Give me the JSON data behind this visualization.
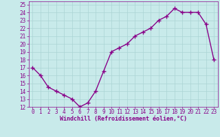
{
  "x": [
    0,
    1,
    2,
    3,
    4,
    5,
    6,
    7,
    8,
    9,
    10,
    11,
    12,
    13,
    14,
    15,
    16,
    17,
    18,
    19,
    20,
    21,
    22,
    23
  ],
  "y": [
    17,
    16,
    14.5,
    14,
    13.5,
    13,
    12,
    12.5,
    14,
    16.5,
    19,
    19.5,
    20,
    21,
    21.5,
    22,
    23,
    23.5,
    24.5,
    24,
    24,
    24,
    22.5,
    18
  ],
  "line_color": "#880088",
  "marker": "+",
  "marker_color": "#880088",
  "bg_color": "#c8eaea",
  "grid_color": "#aad4d4",
  "xlabel": "Windchill (Refroidissement éolien,°C)",
  "xlim": [
    -0.5,
    23.5
  ],
  "ylim": [
    12,
    25.4
  ],
  "yticks": [
    12,
    13,
    14,
    15,
    16,
    17,
    18,
    19,
    20,
    21,
    22,
    23,
    24,
    25
  ],
  "xticks": [
    0,
    1,
    2,
    3,
    4,
    5,
    6,
    7,
    8,
    9,
    10,
    11,
    12,
    13,
    14,
    15,
    16,
    17,
    18,
    19,
    20,
    21,
    22,
    23
  ],
  "axis_color": "#880088",
  "tick_color": "#880088",
  "label_color": "#880088",
  "linewidth": 1.0,
  "markersize": 4,
  "tick_labelsize": 5.5,
  "xlabel_fontsize": 6.0
}
